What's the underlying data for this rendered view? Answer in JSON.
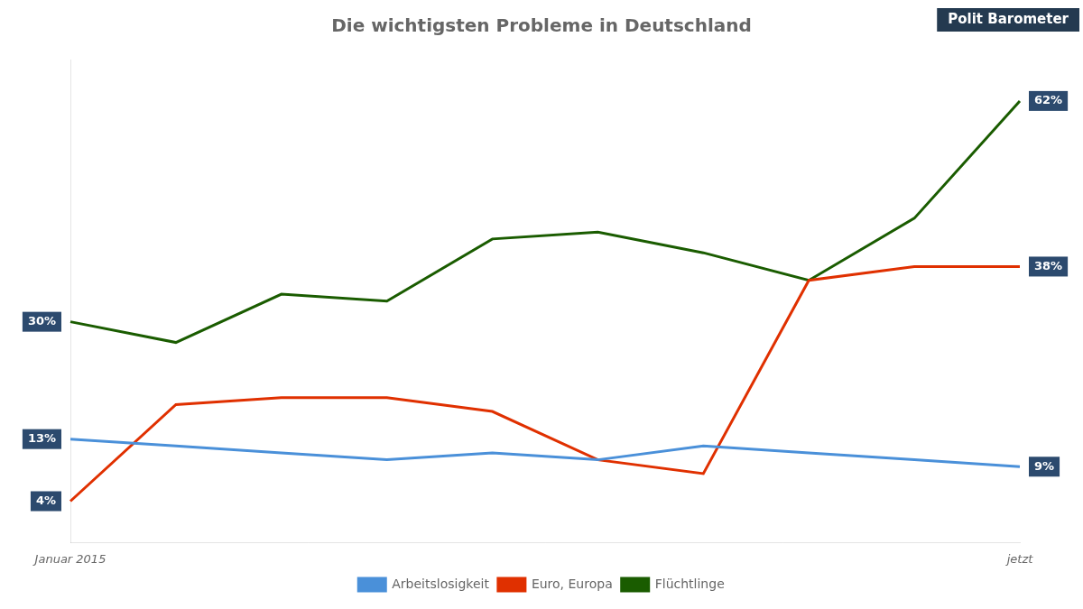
{
  "chart_data": {
    "type": "line",
    "title": "Die wichtigsten Probleme in Deutschland",
    "annotations": [
      "Polit Barometer"
    ],
    "categories": [
      "Januar 2015",
      null,
      null,
      null,
      null,
      null,
      null,
      null,
      null,
      "jetzt"
    ],
    "series": [
      {
        "name": "Arbeitslosigkeit",
        "color": "#4a90d9",
        "values": [
          13,
          12,
          11,
          10,
          11,
          10,
          12,
          11,
          10,
          9
        ],
        "value_labels": [
          "13%",
          null,
          null,
          null,
          null,
          null,
          null,
          null,
          null,
          "9%"
        ]
      },
      {
        "name": "Euro, Europa",
        "color": "#e03000",
        "values": [
          4,
          18,
          19,
          19,
          17,
          10,
          8,
          36,
          38,
          38
        ],
        "value_labels": [
          "4%",
          null,
          null,
          null,
          null,
          null,
          null,
          null,
          null,
          "38%"
        ]
      },
      {
        "name": "Flüchtlinge",
        "color": "#1a5c00",
        "values": [
          30,
          27,
          34,
          33,
          42,
          43,
          40,
          36,
          45,
          62
        ],
        "value_labels": [
          "30%",
          null,
          null,
          null,
          null,
          null,
          null,
          null,
          null,
          "62%"
        ]
      }
    ],
    "ylim": [
      -2,
      68
    ],
    "grid": false,
    "legend": "bottom",
    "data_labels": true,
    "tick_labels": "x"
  }
}
